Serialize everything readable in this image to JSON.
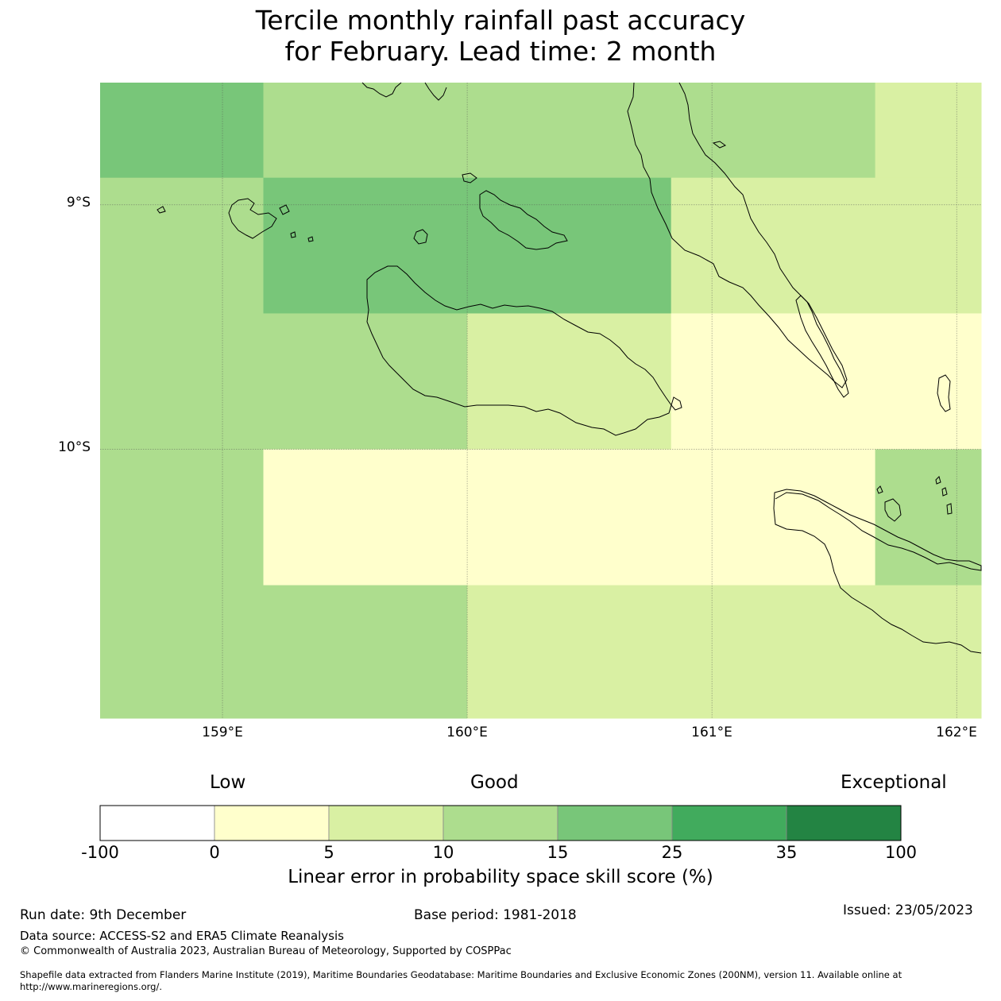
{
  "title": {
    "line1": "Tercile monthly rainfall past accuracy",
    "line2": "for February. Lead time: 2 month"
  },
  "map": {
    "lat_range": [
      -11.1,
      -8.5
    ],
    "lon_range": [
      158.5,
      162.1
    ],
    "lat_ticks": [
      {
        "value": -9,
        "label": "9°S"
      },
      {
        "value": -10,
        "label": "10°S"
      }
    ],
    "lon_ticks": [
      {
        "value": 159,
        "label": "159°E"
      },
      {
        "value": 160,
        "label": "160°E"
      },
      {
        "value": 161,
        "label": "161°E"
      },
      {
        "value": 162,
        "label": "162°E"
      }
    ],
    "cells": [
      {
        "lon0": 158.5,
        "lon1": 159.167,
        "lat0": -8.5,
        "lat1": -8.889,
        "category": "15-25"
      },
      {
        "lon0": 159.167,
        "lon1": 161.667,
        "lat0": -8.5,
        "lat1": -8.889,
        "category": "10-15"
      },
      {
        "lon0": 161.667,
        "lon1": 162.1,
        "lat0": -8.5,
        "lat1": -8.889,
        "category": "5-10"
      },
      {
        "lon0": 158.5,
        "lon1": 159.167,
        "lat0": -8.889,
        "lat1": -9.444,
        "category": "10-15"
      },
      {
        "lon0": 159.167,
        "lon1": 160.833,
        "lat0": -8.889,
        "lat1": -9.444,
        "category": "15-25"
      },
      {
        "lon0": 160.833,
        "lon1": 162.1,
        "lat0": -8.889,
        "lat1": -9.444,
        "category": "5-10"
      },
      {
        "lon0": 158.5,
        "lon1": 160.0,
        "lat0": -9.444,
        "lat1": -10.0,
        "category": "10-15"
      },
      {
        "lon0": 160.0,
        "lon1": 160.833,
        "lat0": -9.444,
        "lat1": -10.0,
        "category": "5-10"
      },
      {
        "lon0": 160.833,
        "lon1": 162.1,
        "lat0": -9.444,
        "lat1": -10.0,
        "category": "0-5"
      },
      {
        "lon0": 158.5,
        "lon1": 159.167,
        "lat0": -10.0,
        "lat1": -10.556,
        "category": "10-15"
      },
      {
        "lon0": 159.167,
        "lon1": 161.667,
        "lat0": -10.0,
        "lat1": -10.556,
        "category": "0-5"
      },
      {
        "lon0": 161.667,
        "lon1": 162.1,
        "lat0": -10.0,
        "lat1": -10.556,
        "category": "10-15"
      },
      {
        "lon0": 158.5,
        "lon1": 160.0,
        "lat0": -10.556,
        "lat1": -11.1,
        "category": "10-15"
      },
      {
        "lon0": 160.0,
        "lon1": 162.1,
        "lat0": -10.556,
        "lat1": -11.1,
        "category": "5-10"
      }
    ]
  },
  "colorbar": {
    "category_labels": {
      "low": "Low",
      "good": "Good",
      "exceptional": "Exceptional"
    },
    "ticks": [
      "-100",
      "0",
      "5",
      "10",
      "15",
      "25",
      "35",
      "100"
    ],
    "bins": [
      {
        "id": "-100-0",
        "color": "#ffffff"
      },
      {
        "id": "0-5",
        "color": "#ffffcc"
      },
      {
        "id": "5-10",
        "color": "#d9f0a3"
      },
      {
        "id": "10-15",
        "color": "#addd8e"
      },
      {
        "id": "15-25",
        "color": "#78c679"
      },
      {
        "id": "25-35",
        "color": "#41ab5d"
      },
      {
        "id": "35-100",
        "color": "#238443"
      }
    ],
    "title": "Linear error in probability space skill score (%)"
  },
  "footer": {
    "run_date": "Run date: 9th December",
    "base_period": "Base period: 1981-2018",
    "issued": "Issued: 23/05/2023",
    "data_source": "Data source: ACCESS-S2 and ERA5 Climate Reanalysis",
    "copyright": "© Commonwealth of Australia 2023, Australian Bureau of Meteorology, Supported by COSPPac",
    "shapefile_line1": "Shapefile data extracted from Flanders Marine Institute (2019), Maritime Boundaries Geodatabase: Maritime Boundaries and Exclusive Economic Zones (200NM), version 11. Available online at",
    "shapefile_line2": "http://www.marineregions.org/."
  }
}
